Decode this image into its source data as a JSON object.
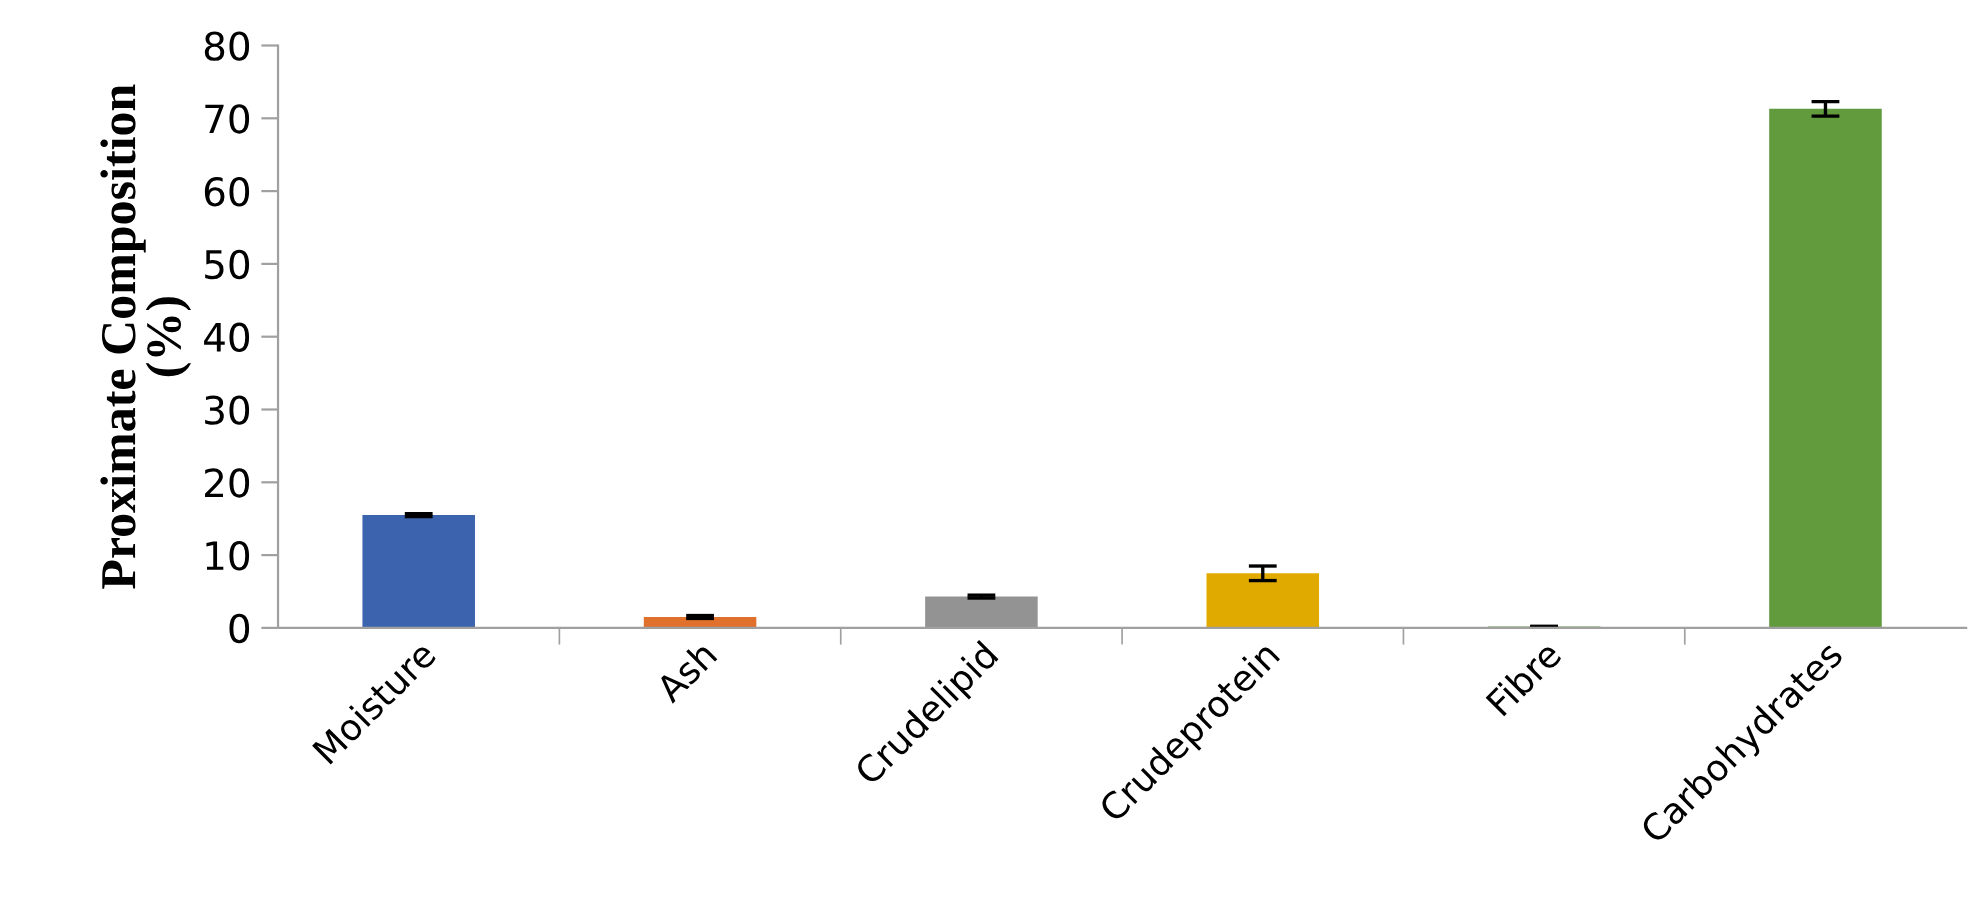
{
  "chart_data": {
    "type": "bar",
    "ylabel": "Proximate Composition\n(%)",
    "categories": [
      "Moisture",
      "Ash",
      "Crudelipid",
      "Crudeprotein",
      "Fibre",
      "Carbohydrates"
    ],
    "values": [
      15.5,
      1.5,
      4.3,
      7.5,
      0.2,
      71.3
    ],
    "errors": [
      0.2,
      0.2,
      0.2,
      1.0,
      null,
      1.0
    ],
    "colors": [
      "#3c63ad",
      "#e0712c",
      "#939393",
      "#e1aa00",
      "#629a3e",
      "#629a3e"
    ],
    "ylim": [
      0,
      80
    ],
    "yticks": [
      0,
      10,
      20,
      30,
      40,
      50,
      60,
      70,
      80
    ],
    "grid": false
  }
}
